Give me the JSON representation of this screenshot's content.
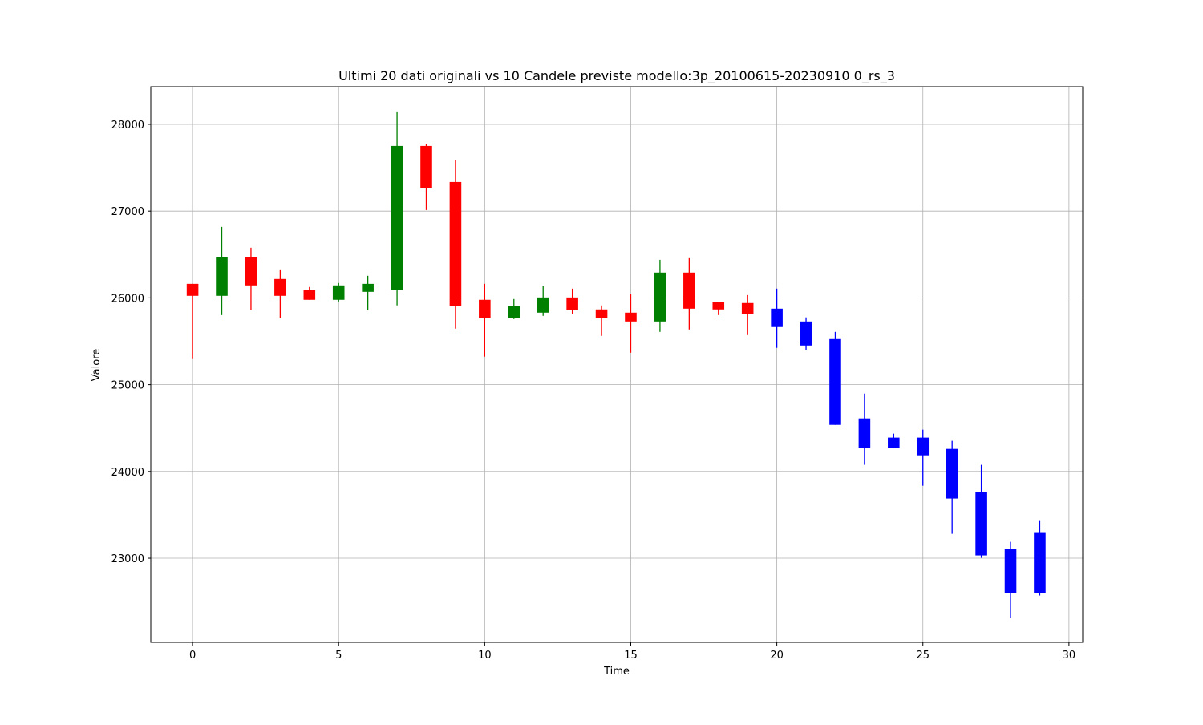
{
  "chart_data": {
    "type": "candlestick",
    "title": "Ultimi 20 dati originali vs 10 Candele previste modello:3p_20100615-20230910 0_rs_3",
    "x_label": "Time",
    "y_label": "Valore",
    "xlim": [
      -1.43,
      30.47
    ],
    "xticks": [
      0,
      5,
      10,
      15,
      20,
      25,
      30
    ],
    "ylim": [
      22030,
      28434
    ],
    "yticks": [
      23000,
      24000,
      25000,
      26000,
      27000,
      28000
    ],
    "grid": true,
    "series": [
      {
        "color": {
          "up": "#008000",
          "down": "#ff0000"
        },
        "x": [
          0,
          1,
          2,
          3,
          4,
          5,
          6,
          7,
          8,
          9,
          10,
          11,
          12,
          13,
          14,
          15,
          16,
          17,
          18,
          19
        ],
        "open": [
          26162,
          26024,
          26467,
          26218,
          26089,
          25978,
          26070,
          26089,
          27751,
          27335,
          25978,
          25765,
          25830,
          26005,
          25867,
          25830,
          25728,
          26292,
          25950,
          25941
        ],
        "high": [
          26162,
          26818,
          26578,
          26319,
          26126,
          26172,
          26255,
          28139,
          27769,
          27584,
          26162,
          25987,
          26135,
          26107,
          25913,
          26042,
          26439,
          26458,
          25950,
          26033
        ],
        "low": [
          25295,
          25802,
          25858,
          25765,
          25978,
          25959,
          25858,
          25913,
          27012,
          25645,
          25322,
          25756,
          25793,
          25812,
          25562,
          25368,
          25608,
          25636,
          25802,
          25571
        ],
        "close": [
          26024,
          26467,
          26144,
          26024,
          25978,
          26144,
          26162,
          27751,
          27261,
          25904,
          25765,
          25904,
          26005,
          25858,
          25765,
          25728,
          26292,
          25876,
          25867,
          25812
        ]
      },
      {
        "color": "#0000ff",
        "x": [
          20,
          21,
          22,
          23,
          24,
          25,
          26,
          27,
          28,
          29
        ],
        "open": [
          25876,
          25728,
          25525,
          24611,
          24390,
          24390,
          24260,
          23762,
          23106,
          23300
        ],
        "high": [
          26107,
          25775,
          25608,
          24897,
          24436,
          24482,
          24353,
          24076,
          23189,
          23429
        ],
        "low": [
          25424,
          25396,
          24537,
          24076,
          24269,
          23835,
          23281,
          23004,
          22312,
          22570
        ],
        "close": [
          25664,
          25451,
          24537,
          24269,
          24269,
          24186,
          23688,
          23032,
          22598,
          22598
        ]
      }
    ]
  }
}
